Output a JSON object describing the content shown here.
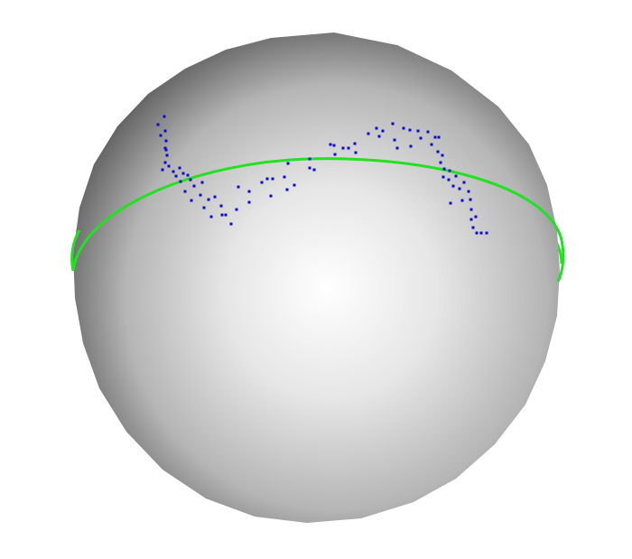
{
  "scene": {
    "background": "#ffffff",
    "sphere": {
      "highlight_color": "#ffffff",
      "mid_color": "#cfcfcf",
      "shadow_color": "#4a4a4a",
      "edge_color": "#2a2a2a"
    },
    "equator": {
      "color": "#22e022"
    },
    "points": {
      "color": "#0b0bd0",
      "count_shown": 92
    }
  }
}
